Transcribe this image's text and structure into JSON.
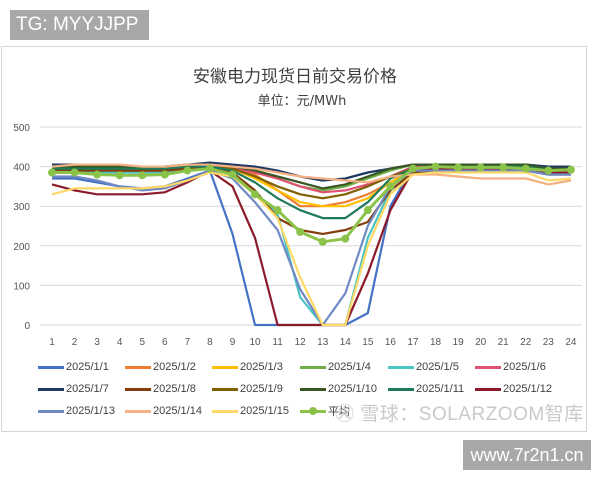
{
  "badges": {
    "top_left": "TG: MYYJJPP",
    "bottom_right": "www.7r2n1.cn"
  },
  "watermark": "㊋ 雪球：SOLARZOOM智库",
  "chart_data": {
    "type": "line",
    "title": "安徽电力现货日前交易价格",
    "subtitle": "单位：元/MWh",
    "xlabel": "",
    "ylabel": "元/MWh",
    "ylim": [
      0,
      500
    ],
    "yticks": [
      0,
      100,
      200,
      300,
      400,
      500
    ],
    "grid": true,
    "legend_position": "bottom",
    "categories": [
      "1",
      "2",
      "3",
      "4",
      "5",
      "6",
      "7",
      "8",
      "9",
      "10",
      "11",
      "12",
      "13",
      "14",
      "15",
      "16",
      "17",
      "18",
      "19",
      "20",
      "21",
      "22",
      "23",
      "24"
    ],
    "series": [
      {
        "name": "2025/1/1",
        "color": "#4472c4",
        "values": [
          370,
          370,
          360,
          350,
          345,
          350,
          370,
          390,
          230,
          0,
          0,
          0,
          0,
          0,
          30,
          300,
          400,
          400,
          400,
          400,
          400,
          400,
          390,
          390
        ]
      },
      {
        "name": "2025/1/2",
        "color": "#ed7d31",
        "values": [
          395,
          395,
          395,
          395,
          395,
          395,
          400,
          405,
          395,
          380,
          340,
          300,
          300,
          310,
          330,
          360,
          395,
          400,
          400,
          400,
          400,
          400,
          390,
          390
        ]
      },
      {
        "name": "2025/1/3",
        "color": "#ffc000",
        "values": [
          390,
          395,
          395,
          395,
          395,
          395,
          400,
          400,
          395,
          370,
          340,
          310,
          300,
          300,
          320,
          360,
          390,
          395,
          395,
          395,
          395,
          395,
          385,
          385
        ]
      },
      {
        "name": "2025/1/4",
        "color": "#70ad47",
        "values": [
          395,
          395,
          395,
          395,
          395,
          395,
          400,
          405,
          400,
          390,
          370,
          350,
          340,
          350,
          370,
          390,
          405,
          405,
          405,
          405,
          405,
          405,
          400,
          400
        ]
      },
      {
        "name": "2025/1/5",
        "color": "#4bc4c4",
        "values": [
          385,
          385,
          385,
          385,
          385,
          385,
          390,
          395,
          380,
          330,
          280,
          70,
          0,
          0,
          220,
          340,
          385,
          390,
          390,
          390,
          390,
          390,
          380,
          380
        ]
      },
      {
        "name": "2025/1/6",
        "color": "#e05070",
        "values": [
          395,
          395,
          395,
          390,
          390,
          390,
          395,
          400,
          395,
          385,
          370,
          350,
          335,
          340,
          355,
          375,
          400,
          400,
          400,
          400,
          400,
          400,
          395,
          395
        ]
      },
      {
        "name": "2025/1/7",
        "color": "#1f3864",
        "values": [
          405,
          405,
          405,
          400,
          400,
          400,
          405,
          410,
          405,
          400,
          390,
          375,
          365,
          370,
          385,
          395,
          405,
          405,
          405,
          405,
          405,
          405,
          400,
          400
        ]
      },
      {
        "name": "2025/1/8",
        "color": "#843c0c",
        "values": [
          390,
          390,
          390,
          390,
          390,
          390,
          395,
          400,
          385,
          340,
          270,
          240,
          230,
          240,
          260,
          340,
          385,
          390,
          390,
          390,
          390,
          390,
          380,
          380
        ]
      },
      {
        "name": "2025/1/9",
        "color": "#7f6000",
        "values": [
          395,
          395,
          395,
          395,
          395,
          395,
          400,
          405,
          395,
          375,
          350,
          330,
          320,
          330,
          350,
          375,
          395,
          395,
          395,
          395,
          395,
          395,
          385,
          385
        ]
      },
      {
        "name": "2025/1/10",
        "color": "#375623",
        "values": [
          400,
          400,
          400,
          400,
          400,
          400,
          405,
          405,
          400,
          390,
          375,
          360,
          345,
          355,
          375,
          395,
          405,
          405,
          405,
          405,
          405,
          405,
          395,
          395
        ]
      },
      {
        "name": "2025/1/11",
        "color": "#1e7a5a",
        "values": [
          395,
          395,
          395,
          395,
          395,
          395,
          400,
          400,
          390,
          360,
          320,
          290,
          270,
          270,
          310,
          370,
          395,
          400,
          400,
          400,
          400,
          400,
          390,
          390
        ]
      },
      {
        "name": "2025/1/12",
        "color": "#8b1a2b",
        "values": [
          355,
          340,
          330,
          330,
          330,
          335,
          360,
          390,
          350,
          220,
          0,
          0,
          0,
          0,
          130,
          290,
          390,
          395,
          395,
          395,
          395,
          395,
          385,
          385
        ]
      },
      {
        "name": "2025/1/13",
        "color": "#6f8ac4",
        "values": [
          375,
          375,
          365,
          350,
          340,
          345,
          365,
          390,
          370,
          310,
          240,
          90,
          0,
          80,
          250,
          350,
          390,
          390,
          390,
          390,
          390,
          390,
          380,
          380
        ]
      },
      {
        "name": "2025/1/14",
        "color": "#f4b183",
        "values": [
          400,
          405,
          405,
          405,
          400,
          400,
          405,
          405,
          400,
          395,
          385,
          375,
          370,
          365,
          360,
          375,
          380,
          380,
          375,
          370,
          370,
          370,
          355,
          365
        ]
      },
      {
        "name": "2025/1/15",
        "color": "#ffd966",
        "values": [
          330,
          345,
          345,
          345,
          345,
          350,
          365,
          385,
          375,
          330,
          270,
          120,
          0,
          0,
          200,
          330,
          380,
          385,
          385,
          385,
          385,
          385,
          365,
          370
        ]
      },
      {
        "name": "平均",
        "color": "#8bc34a",
        "marker": "circle",
        "values": [
          385,
          385,
          380,
          378,
          378,
          380,
          390,
          395,
          380,
          330,
          290,
          235,
          210,
          218,
          290,
          350,
          395,
          400,
          398,
          398,
          398,
          395,
          390,
          392
        ]
      }
    ]
  },
  "legend": {
    "rows": [
      [
        "2025/1/1",
        "2025/1/2",
        "2025/1/3",
        "2025/1/4",
        "2025/1/5",
        "2025/1/6"
      ],
      [
        "2025/1/7",
        "2025/1/8",
        "2025/1/9",
        "2025/1/10",
        "2025/1/11",
        "2025/1/12"
      ],
      [
        "2025/1/13",
        "2025/1/14",
        "2025/1/15",
        "平均"
      ]
    ]
  }
}
